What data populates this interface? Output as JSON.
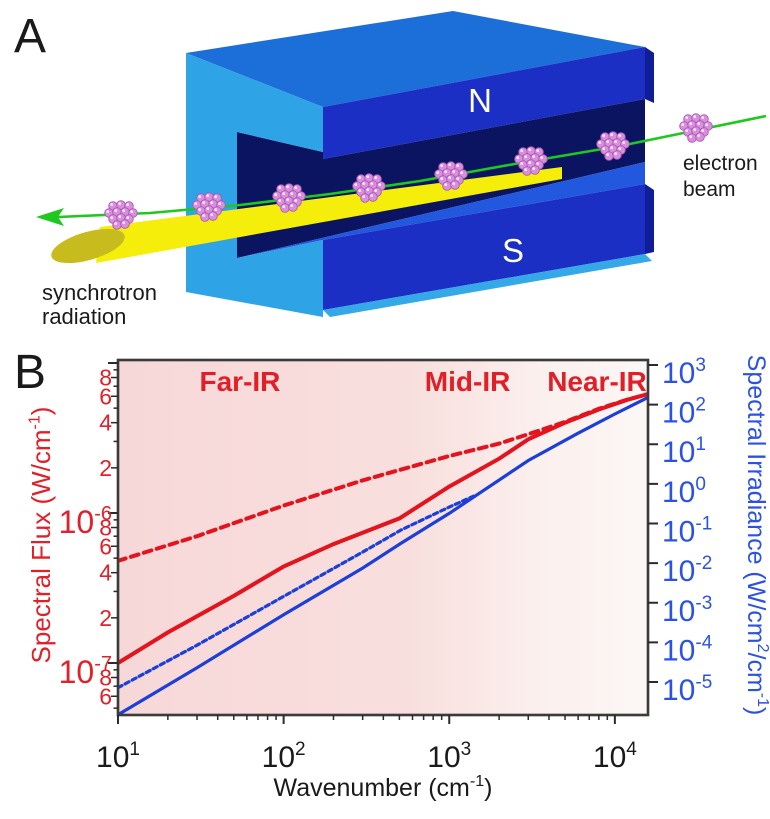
{
  "panelA": {
    "label": "A",
    "magnet": {
      "north_label": "N",
      "south_label": "S"
    },
    "electron_beam_label_lines": [
      "electron",
      "beam"
    ],
    "synchrotron_label_lines": [
      "synchrotron",
      "radiation"
    ],
    "colors": {
      "magnet_top_face": "#1C6ED8",
      "magnet_front_face": "#1B2FC4",
      "magnet_end_face": "#0F1D96",
      "magnet_cavity": "#0A1460",
      "magnet_yoke_face": "#2EA3E6",
      "magnet_s_top_face": "#2158DE",
      "magnet_bottom_face": "#35A9E8",
      "beam_green": "#1FC81F",
      "radiation_yellow": "#F5ED0A",
      "radiation_cap": "#C8BB1E",
      "bunch_pink": "#DC8EDE",
      "bunch_outline": "#A75BB4"
    }
  },
  "panelB": {
    "label": "B"
  },
  "colors": {
    "background_gradient": [
      "#F7D8D8",
      "#F8DFDD",
      "#FBF0EE",
      "#FCF7F5"
    ],
    "frame": "#3B3B3B",
    "tick": "#2B2B2B",
    "text": "#1A1A1A"
  },
  "chart_data": {
    "type": "line",
    "title": "",
    "x_axis": {
      "label": "Wavenumber (cm⁻¹)",
      "scale": "log",
      "range": [
        10,
        15850
      ],
      "major_ticks": [
        10,
        100,
        1000,
        10000
      ]
    },
    "y_axis_left": {
      "label": "Spectral Flux (W/cm⁻¹)",
      "scale": "log",
      "range": [
        4.5e-08,
        1.047e-05
      ],
      "color": "#E0202A",
      "tick_decades": [
        -8,
        -7,
        -6,
        -5
      ],
      "labeled_major_decades": [
        -7,
        -6
      ]
    },
    "y_axis_right": {
      "label": "Spectral Irradiance (W/cm²/cm⁻¹)",
      "scale": "log",
      "range": [
        1.47e-06,
        1337
      ],
      "color": "#2C52E4",
      "tick_exponents": [
        3,
        2,
        1,
        0,
        -1,
        -2,
        -3,
        -4,
        -5
      ]
    },
    "regions": [
      {
        "label": "Far-IR",
        "x": 54.5
      },
      {
        "label": "Mid-IR",
        "x": 1290
      },
      {
        "label": "Near-IR",
        "x": 7800
      }
    ],
    "region_label_color": "#E02028",
    "grid": false,
    "legend": false,
    "series": [
      {
        "name": "spectral-flux-bending-magnet-solid",
        "axis": "left",
        "style": "solid",
        "color": "#E3141E",
        "points": [
          [
            10,
            1e-07
          ],
          [
            20,
            1.6e-07
          ],
          [
            50,
            2.8e-07
          ],
          [
            100,
            4.4e-07
          ],
          [
            200,
            6.2e-07
          ],
          [
            500,
            9.2e-07
          ],
          [
            1000,
            1.5e-06
          ],
          [
            2000,
            2.3e-06
          ],
          [
            3000,
            3.1e-06
          ],
          [
            5000,
            4e-06
          ],
          [
            8000,
            4.9e-06
          ],
          [
            12000,
            5.7e-06
          ],
          [
            15850,
            6.2e-06
          ]
        ]
      },
      {
        "name": "spectral-flux-dashed",
        "axis": "left",
        "style": "dashed",
        "color": "#E3141E",
        "points": [
          [
            10,
            4.8e-07
          ],
          [
            30,
            7e-07
          ],
          [
            100,
            1.12e-06
          ],
          [
            300,
            1.65e-06
          ],
          [
            1000,
            2.4e-06
          ],
          [
            2000,
            2.9e-06
          ],
          [
            3000,
            3.35e-06
          ],
          [
            5000,
            4.05e-06
          ],
          [
            8000,
            4.95e-06
          ],
          [
            12000,
            5.72e-06
          ],
          [
            15850,
            6.2e-06
          ]
        ]
      },
      {
        "name": "spectral-irradiance-solid",
        "axis": "right",
        "style": "solid",
        "color": "#1C3FD8",
        "points": [
          [
            10,
            1.5e-06
          ],
          [
            30,
            2.3e-05
          ],
          [
            100,
            0.0005
          ],
          [
            300,
            0.0075
          ],
          [
            513,
            0.032
          ],
          [
            1000,
            0.18
          ],
          [
            3000,
            3.9
          ],
          [
            6000,
            19
          ],
          [
            10000,
            58
          ],
          [
            15850,
            152
          ]
        ]
      },
      {
        "name": "spectral-irradiance-dashed",
        "axis": "right",
        "style": "dashed",
        "color": "#1C3FD8",
        "points": [
          [
            10,
            7.2e-06
          ],
          [
            30,
            8.5e-05
          ],
          [
            100,
            0.00145
          ],
          [
            300,
            0.019
          ],
          [
            513,
            0.069
          ],
          [
            1000,
            0.26
          ],
          [
            1400,
            0.49
          ]
        ]
      }
    ]
  }
}
